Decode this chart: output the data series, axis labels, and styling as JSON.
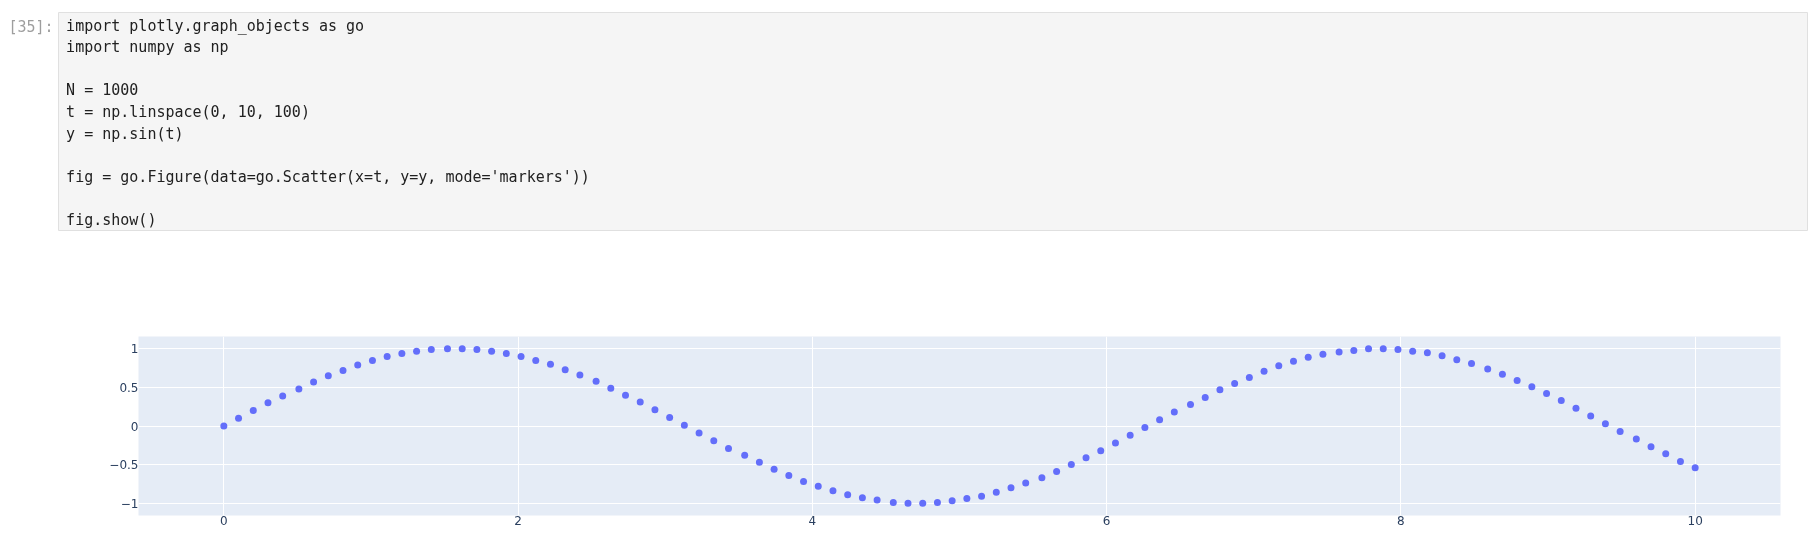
{
  "chart_data": {
    "type": "scatter",
    "annotations": [
      "[35]:",
      "import plotly.graph_objects as go\nimport numpy as np\n\nN = 1000\nt = np.linspace(0, 10, 100)\ny = np.sin(t)\n\nfig = go.Figure(data=go.Scatter(x=t, y=y, mode='markers'))\n\nfig.show()"
    ],
    "x": [
      0,
      0.1,
      0.2,
      0.3,
      0.4,
      0.51,
      0.61,
      0.71,
      0.81,
      0.91,
      1.01,
      1.11,
      1.21,
      1.31,
      1.41,
      1.52,
      1.62,
      1.72,
      1.82,
      1.92,
      2.02,
      2.12,
      2.22,
      2.32,
      2.42,
      2.53,
      2.63,
      2.73,
      2.83,
      2.93,
      3.03,
      3.13,
      3.23,
      3.33,
      3.43,
      3.54,
      3.64,
      3.74,
      3.84,
      3.94,
      4.04,
      4.14,
      4.24,
      4.34,
      4.44,
      4.55,
      4.65,
      4.75,
      4.85,
      4.95,
      5.05,
      5.15,
      5.25,
      5.35,
      5.45,
      5.56,
      5.66,
      5.76,
      5.86,
      5.96,
      6.06,
      6.16,
      6.26,
      6.36,
      6.46,
      6.57,
      6.67,
      6.77,
      6.87,
      6.97,
      7.07,
      7.17,
      7.27,
      7.37,
      7.47,
      7.58,
      7.68,
      7.78,
      7.88,
      7.98,
      8.08,
      8.18,
      8.28,
      8.38,
      8.48,
      8.59,
      8.69,
      8.79,
      8.89,
      8.99,
      9.09,
      9.19,
      9.29,
      9.39,
      9.49,
      9.6,
      9.7,
      9.8,
      9.9,
      10
    ],
    "series": [
      {
        "color": "#636efa",
        "values": [
          0,
          0.1,
          0.2,
          0.3,
          0.39,
          0.48,
          0.57,
          0.65,
          0.72,
          0.79,
          0.85,
          0.9,
          0.94,
          0.97,
          0.99,
          1.0,
          1.0,
          0.99,
          0.97,
          0.94,
          0.9,
          0.85,
          0.8,
          0.73,
          0.66,
          0.58,
          0.49,
          0.4,
          0.31,
          0.21,
          0.11,
          0.01,
          -0.09,
          -0.19,
          -0.29,
          -0.38,
          -0.47,
          -0.56,
          -0.64,
          -0.72,
          -0.78,
          -0.84,
          -0.89,
          -0.93,
          -0.96,
          -0.99,
          -1.0,
          -1.0,
          -0.99,
          -0.97,
          -0.94,
          -0.91,
          -0.86,
          -0.8,
          -0.74,
          -0.67,
          -0.59,
          -0.5,
          -0.41,
          -0.32,
          -0.22,
          -0.12,
          -0.02,
          0.08,
          0.18,
          0.28,
          0.37,
          0.47,
          0.55,
          0.63,
          0.71,
          0.78,
          0.84,
          0.89,
          0.93,
          0.96,
          0.98,
          1.0,
          1.0,
          0.99,
          0.97,
          0.95,
          0.91,
          0.86,
          0.81,
          0.74,
          0.67,
          0.59,
          0.51,
          0.42,
          0.33,
          0.23,
          0.13,
          0.03,
          -0.07,
          -0.17,
          -0.27,
          -0.36,
          -0.46,
          -0.54
        ]
      }
    ],
    "xlim": [
      -0.58,
      10.58
    ],
    "ylim": [
      -1.16,
      1.16
    ],
    "xticks": [
      0,
      2,
      4,
      6,
      8,
      10
    ],
    "yticks": [
      {
        "value": -1,
        "label": "−1"
      },
      {
        "value": -0.5,
        "label": "−0.5"
      },
      0,
      0.5,
      1
    ],
    "grid": true,
    "marker": "circle"
  }
}
